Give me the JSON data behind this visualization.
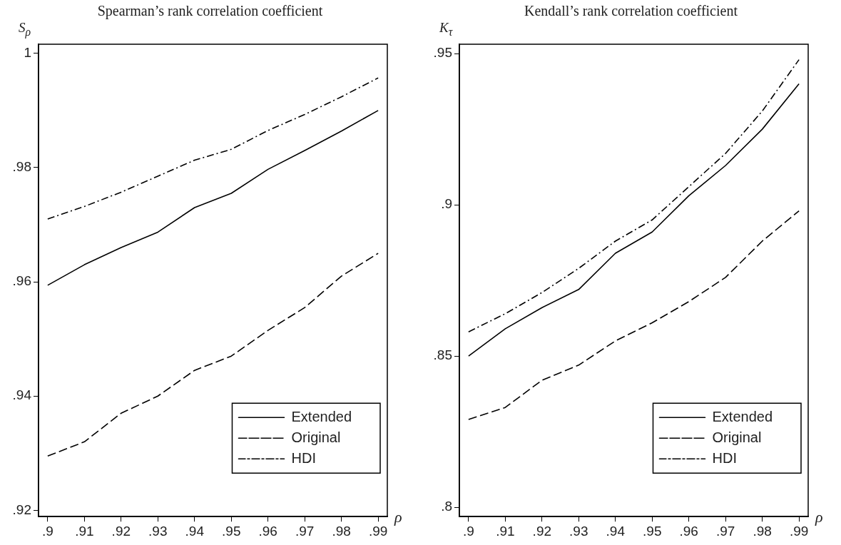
{
  "chart_data": [
    {
      "type": "line",
      "title": "Spearman’s rank correlation coefficient",
      "ylabel": "S$_{ρ}$",
      "xlabel": "ρ",
      "x": [
        0.9,
        0.91,
        0.92,
        0.93,
        0.94,
        0.95,
        0.96,
        0.97,
        0.98,
        0.99
      ],
      "series": [
        {
          "name": "Extended",
          "color": "#000000",
          "line_style": "solid",
          "values": [
            0.9594,
            0.963,
            0.966,
            0.9687,
            0.973,
            0.9755,
            0.9797,
            0.983,
            0.9864,
            0.99
          ]
        },
        {
          "name": "Original",
          "color": "#000000",
          "line_style": "dashed",
          "values": [
            0.9295,
            0.932,
            0.937,
            0.94,
            0.9445,
            0.947,
            0.9515,
            0.9555,
            0.961,
            0.965
          ]
        },
        {
          "name": "HDI",
          "color": "#000000",
          "line_style": "dashdot",
          "values": [
            0.971,
            0.9732,
            0.9757,
            0.9785,
            0.9813,
            0.9832,
            0.9865,
            0.9893,
            0.9924,
            0.9957
          ]
        }
      ],
      "xlim": [
        0.8975,
        0.9925
      ],
      "ylim": [
        0.9189,
        1.0016
      ],
      "xticks": [
        {
          "value": 0.9,
          "label": ".9"
        },
        {
          "value": 0.91,
          "label": ".91"
        },
        {
          "value": 0.92,
          "label": ".92"
        },
        {
          "value": 0.93,
          "label": ".93"
        },
        {
          "value": 0.94,
          "label": ".94"
        },
        {
          "value": 0.95,
          "label": ".95"
        },
        {
          "value": 0.96,
          "label": ".96"
        },
        {
          "value": 0.97,
          "label": ".97"
        },
        {
          "value": 0.98,
          "label": ".98"
        },
        {
          "value": 0.99,
          "label": ".99"
        }
      ],
      "yticks": [
        {
          "value": 0.92,
          "label": ".92"
        },
        {
          "value": 0.94,
          "label": ".94"
        },
        {
          "value": 0.96,
          "label": ".96"
        },
        {
          "value": 0.98,
          "label": ".98"
        },
        1
      ],
      "grid": false,
      "legend": "bottom right",
      "marker": "none"
    },
    {
      "type": "line",
      "title": "Kendall’s rank correlation coefficient",
      "ylabel": "K$_{τ}$",
      "xlabel": "ρ",
      "x": [
        0.9,
        0.91,
        0.92,
        0.93,
        0.94,
        0.95,
        0.96,
        0.97,
        0.98,
        0.99
      ],
      "series": [
        {
          "name": "Extended",
          "color": "#000000",
          "line_style": "solid",
          "values": [
            0.85,
            0.859,
            0.866,
            0.872,
            0.884,
            0.891,
            0.903,
            0.913,
            0.925,
            0.94
          ]
        },
        {
          "name": "Original",
          "color": "#000000",
          "line_style": "dashed",
          "values": [
            0.829,
            0.833,
            0.842,
            0.847,
            0.855,
            0.861,
            0.868,
            0.876,
            0.888,
            0.898
          ]
        },
        {
          "name": "HDI",
          "color": "#000000",
          "line_style": "dashdot",
          "values": [
            0.858,
            0.864,
            0.871,
            0.879,
            0.888,
            0.895,
            0.906,
            0.917,
            0.931,
            0.948
          ]
        }
      ],
      "xlim": [
        0.8975,
        0.9925
      ],
      "ylim": [
        0.7969,
        0.9531
      ],
      "xticks": [
        {
          "value": 0.9,
          "label": ".9"
        },
        {
          "value": 0.91,
          "label": ".91"
        },
        {
          "value": 0.92,
          "label": ".92"
        },
        {
          "value": 0.93,
          "label": ".93"
        },
        {
          "value": 0.94,
          "label": ".94"
        },
        {
          "value": 0.95,
          "label": ".95"
        },
        {
          "value": 0.96,
          "label": ".96"
        },
        {
          "value": 0.97,
          "label": ".97"
        },
        {
          "value": 0.98,
          "label": ".98"
        },
        {
          "value": 0.99,
          "label": ".99"
        }
      ],
      "yticks": [
        {
          "value": 0.8,
          "label": ".8"
        },
        {
          "value": 0.85,
          "label": ".85"
        },
        {
          "value": 0.9,
          "label": ".9"
        },
        {
          "value": 0.95,
          "label": ".95"
        }
      ],
      "grid": false,
      "legend": "bottom right",
      "marker": "none"
    }
  ]
}
